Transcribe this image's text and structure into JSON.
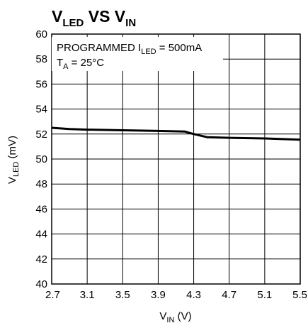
{
  "chart_data": {
    "type": "line",
    "title": {
      "main": "V",
      "sub1": "LED",
      "mid": " VS V",
      "sub2": "IN"
    },
    "xlabel": {
      "main": "V",
      "sub": "IN",
      "tail": " (V)"
    },
    "ylabel": {
      "main": "V",
      "sub": "LED",
      "tail": " (mV)"
    },
    "xlim": [
      2.7,
      5.5
    ],
    "ylim": [
      40,
      60
    ],
    "xticks": [
      2.7,
      3.1,
      3.5,
      3.9,
      4.3,
      4.7,
      5.1,
      5.5
    ],
    "xtick_labels": [
      "2.7",
      "3.1",
      "3.5",
      "3.9",
      "4.3",
      "4.7",
      "5.1",
      "5.5"
    ],
    "yticks": [
      40,
      42,
      44,
      46,
      48,
      50,
      52,
      54,
      56,
      58,
      60
    ],
    "ytick_labels": [
      "40",
      "42",
      "44",
      "46",
      "48",
      "50",
      "52",
      "54",
      "56",
      "58",
      "60"
    ],
    "grid": true,
    "annotations": [
      {
        "main": "PROGRAMMED I",
        "sub": "LED",
        "tail": " = 500mA"
      },
      {
        "main": "T",
        "sub": "A",
        "tail": " = 25°C"
      }
    ],
    "series": [
      {
        "x": [
          2.7,
          2.9,
          3.1,
          3.5,
          3.9,
          4.2,
          4.3,
          4.45,
          4.7,
          5.1,
          5.5
        ],
        "y": [
          52.5,
          52.4,
          52.35,
          52.3,
          52.25,
          52.2,
          52.0,
          51.75,
          51.7,
          51.65,
          51.55
        ]
      }
    ]
  }
}
